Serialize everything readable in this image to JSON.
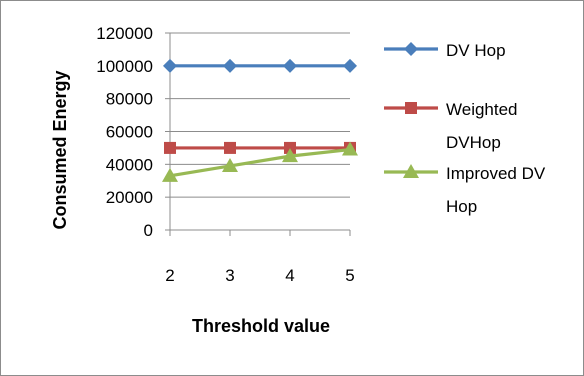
{
  "chart_data": {
    "type": "line",
    "title": "",
    "xlabel": "Threshold value",
    "ylabel": "Consumed Energy",
    "categories": [
      "2",
      "3",
      "4",
      "5"
    ],
    "ylim": [
      0,
      120000
    ],
    "yticks": [
      "0",
      "20000",
      "40000",
      "60000",
      "80000",
      "100000",
      "120000"
    ],
    "grid": true,
    "legend_position": "right",
    "series": [
      {
        "name": "DV Hop",
        "name_lines": [
          "DV Hop"
        ],
        "values": [
          100000,
          100000,
          100000,
          100000
        ],
        "color": "#4a7ebb",
        "marker": "diamond"
      },
      {
        "name": "Weighted DVHop",
        "name_lines": [
          "Weighted",
          "DVHop"
        ],
        "values": [
          50000,
          50000,
          50000,
          50000
        ],
        "color": "#be4b48",
        "marker": "square"
      },
      {
        "name": "Improved DV Hop",
        "name_lines": [
          "Improved DV",
          "Hop"
        ],
        "values": [
          33000,
          39000,
          45000,
          49000
        ],
        "color": "#98b954",
        "marker": "triangle"
      }
    ]
  }
}
